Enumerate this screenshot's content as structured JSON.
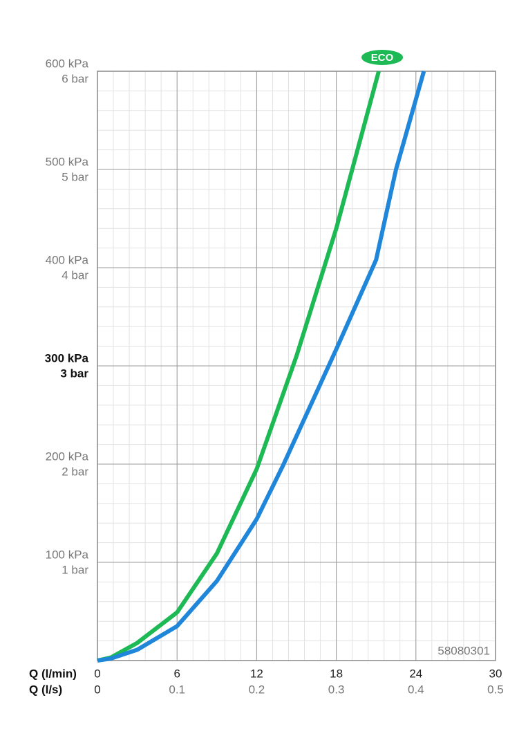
{
  "chart_data": {
    "type": "line",
    "xlabel": "Q (l/min)",
    "x2label": "Q (l/s)",
    "xlim": [
      0,
      30
    ],
    "xticks": [
      0,
      6,
      12,
      18,
      24,
      30
    ],
    "x2lim": [
      0,
      0.5
    ],
    "x2ticks": [
      0,
      0.1,
      0.2,
      0.3,
      0.4,
      0.5
    ],
    "ylim": [
      0,
      600
    ],
    "yticks": [
      {
        "value": 100,
        "label": "100 kPa"
      },
      {
        "value": 200,
        "label": "200 kPa"
      },
      {
        "value": 300,
        "label": "300 kPa"
      },
      {
        "value": 400,
        "label": "400 kPa"
      },
      {
        "value": 500,
        "label": "500 kPa"
      },
      {
        "value": 600,
        "label": "600 kPa"
      }
    ],
    "y2lim": [
      0,
      6
    ],
    "y2ticks": [
      {
        "value": 1,
        "label": "1 bar"
      },
      {
        "value": 2,
        "label": "2 bar"
      },
      {
        "value": 3,
        "label": "3 bar"
      },
      {
        "value": 4,
        "label": "4 bar"
      },
      {
        "value": 5,
        "label": "5 bar"
      },
      {
        "value": 6,
        "label": "6 bar"
      }
    ],
    "highlight_ytick": 300,
    "grid": true,
    "minor_xstep": 1.2,
    "minor_ystep": 20,
    "annotation": "58080301",
    "series": [
      {
        "name": "ECO",
        "color": "#1db954",
        "x": [
          0,
          1,
          3,
          6,
          9,
          12,
          15,
          18,
          21.2
        ],
        "values": [
          0,
          3,
          18,
          49,
          109,
          195,
          310,
          440,
          600
        ]
      },
      {
        "color": "#1f86d9",
        "x": [
          0,
          1,
          3,
          6,
          9,
          12,
          14,
          18,
          21,
          22.5,
          24.6
        ],
        "values": [
          0,
          2,
          11,
          35,
          81,
          144,
          199,
          317,
          408,
          500,
          600
        ]
      }
    ]
  }
}
